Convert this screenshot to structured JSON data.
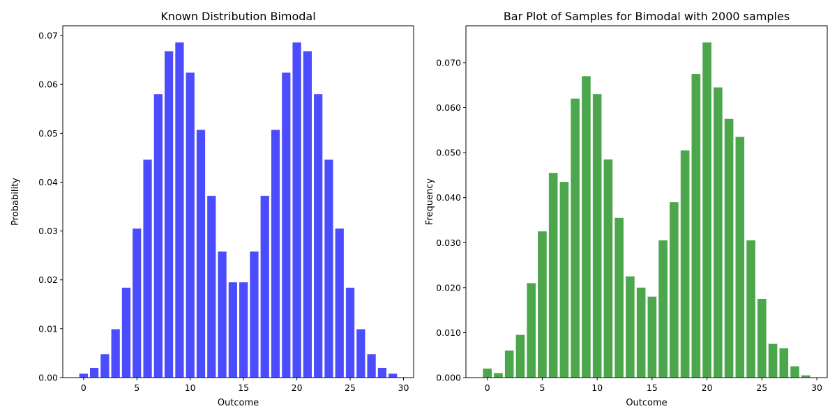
{
  "chart_data": [
    {
      "type": "bar",
      "title": "Known Distribution Bimodal",
      "xlabel": "Outcome",
      "ylabel": "Probability",
      "color": "#0000ff",
      "x": [
        0,
        1,
        2,
        3,
        4,
        5,
        6,
        7,
        8,
        9,
        10,
        11,
        12,
        13,
        14,
        15,
        16,
        17,
        18,
        19,
        20,
        21,
        22,
        23,
        24,
        25,
        26,
        27,
        28,
        29
      ],
      "values": [
        0.0008,
        0.002,
        0.0048,
        0.0099,
        0.0184,
        0.0305,
        0.0446,
        0.058,
        0.0668,
        0.0686,
        0.0624,
        0.0507,
        0.0372,
        0.0258,
        0.0195,
        0.0195,
        0.0258,
        0.0372,
        0.0507,
        0.0624,
        0.0686,
        0.0668,
        0.058,
        0.0446,
        0.0305,
        0.0184,
        0.0099,
        0.0048,
        0.002,
        0.0008
      ],
      "xlim": [
        -1.95,
        30.95
      ],
      "ylim": [
        0,
        0.072
      ],
      "xticks": [
        0,
        5,
        10,
        15,
        20,
        25,
        30
      ],
      "xtick_labels": [
        "0",
        "5",
        "10",
        "15",
        "20",
        "25",
        "30"
      ],
      "yticks": [
        0,
        0.01,
        0.02,
        0.03,
        0.04,
        0.05,
        0.06,
        0.07
      ],
      "ytick_labels": [
        "0.00",
        "0.01",
        "0.02",
        "0.03",
        "0.04",
        "0.05",
        "0.06",
        "0.07"
      ],
      "grid": false
    },
    {
      "type": "bar",
      "title": "Bar Plot of Samples for Bimodal with 2000 samples",
      "xlabel": "Outcome",
      "ylabel": "Frequency",
      "color": "#008000",
      "x": [
        0,
        1,
        2,
        3,
        4,
        5,
        6,
        7,
        8,
        9,
        10,
        11,
        12,
        13,
        14,
        15,
        16,
        17,
        18,
        19,
        20,
        21,
        22,
        23,
        24,
        25,
        26,
        27,
        28,
        29
      ],
      "values": [
        0.002,
        0.001,
        0.006,
        0.0095,
        0.021,
        0.0325,
        0.0455,
        0.0435,
        0.062,
        0.067,
        0.063,
        0.0485,
        0.0355,
        0.0225,
        0.02,
        0.018,
        0.0305,
        0.039,
        0.0505,
        0.0675,
        0.0745,
        0.0645,
        0.0575,
        0.0535,
        0.0305,
        0.0175,
        0.0075,
        0.0065,
        0.0025,
        0.0005
      ],
      "xlim": [
        -1.95,
        30.95
      ],
      "ylim": [
        0,
        0.0782
      ],
      "xticks": [
        0,
        5,
        10,
        15,
        20,
        25,
        30
      ],
      "xtick_labels": [
        "0",
        "5",
        "10",
        "15",
        "20",
        "25",
        "30"
      ],
      "yticks": [
        0,
        0.01,
        0.02,
        0.03,
        0.04,
        0.05,
        0.06,
        0.07
      ],
      "ytick_labels": [
        "0.000",
        "0.010",
        "0.020",
        "0.030",
        "0.040",
        "0.050",
        "0.060",
        "0.070"
      ],
      "grid": false
    }
  ]
}
